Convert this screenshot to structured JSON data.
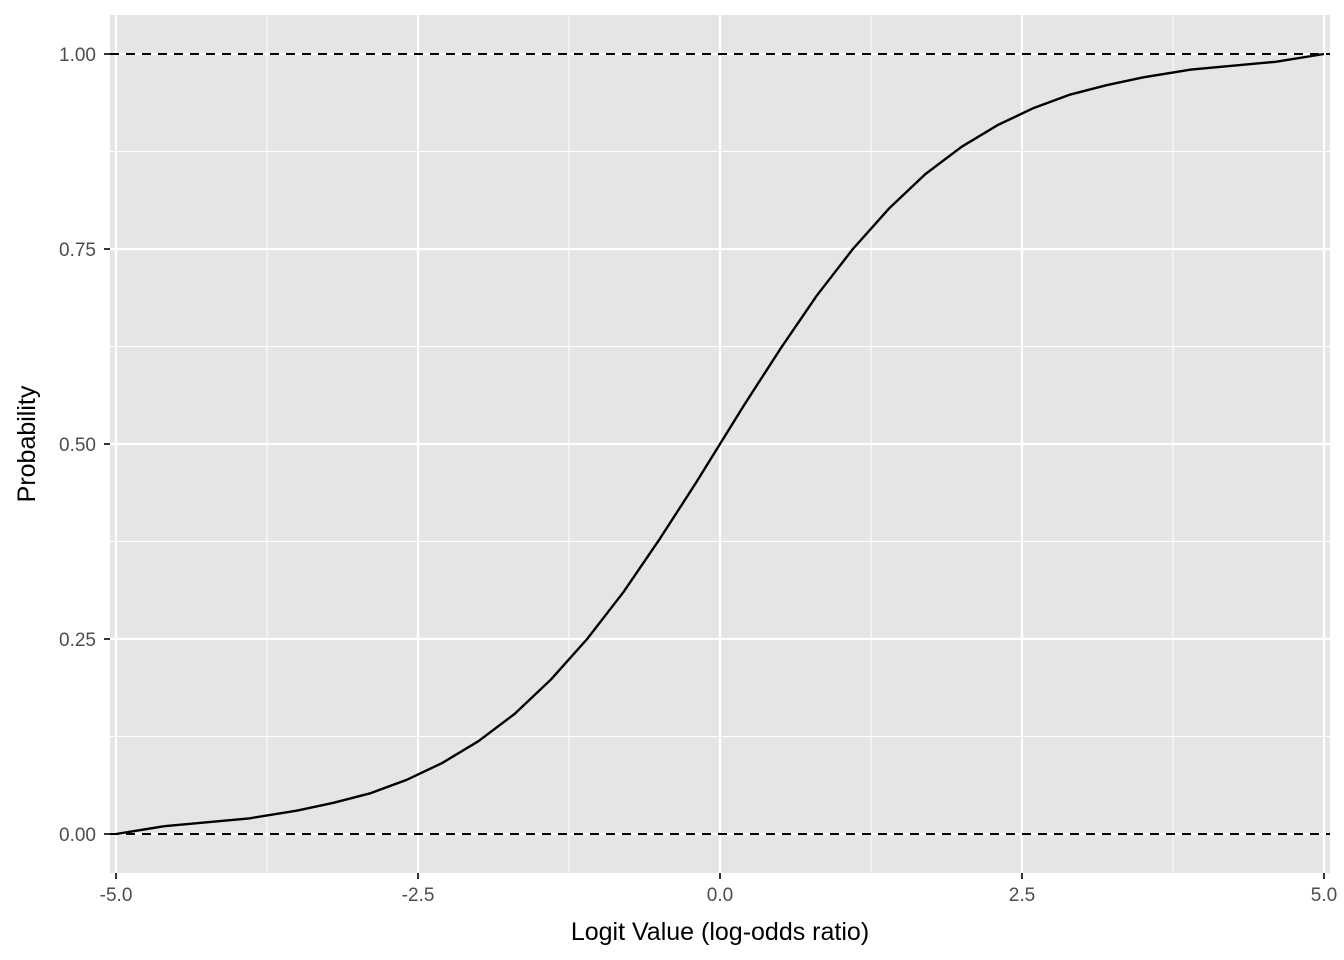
{
  "chart_data": {
    "type": "line",
    "title": "",
    "xlabel": "Logit Value (log-odds ratio)",
    "ylabel": "Probability",
    "xlim": [
      -5.05,
      5.05
    ],
    "ylim": [
      -0.05,
      1.05
    ],
    "x_ticks": [
      -5.0,
      -2.5,
      0.0,
      2.5,
      5.0
    ],
    "x_tick_labels": [
      "-5.0",
      "-2.5",
      "0.0",
      "2.5",
      "5.0"
    ],
    "y_ticks": [
      0.0,
      0.25,
      0.5,
      0.75,
      1.0
    ],
    "y_tick_labels": [
      "0.00",
      "0.25",
      "0.50",
      "0.75",
      "1.00"
    ],
    "x_minor_ticks": [
      -3.75,
      -1.25,
      1.25,
      3.75
    ],
    "y_minor_ticks": [
      0.125,
      0.375,
      0.625,
      0.875
    ],
    "grid": true,
    "panel_background": "#e5e5e5",
    "grid_color": "#ffffff",
    "line_color": "#000000",
    "reference_lines": [
      {
        "y": 0.0,
        "style": "dashed"
      },
      {
        "y": 1.0,
        "style": "dashed"
      }
    ],
    "series": [
      {
        "x": [
          -5.0,
          -4.6,
          -3.9,
          -3.5,
          -3.2,
          -2.9,
          -2.6,
          -2.3,
          -2.0,
          -1.7,
          -1.4,
          -1.1,
          -0.8,
          -0.5,
          -0.2,
          0.0,
          0.2,
          0.5,
          0.8,
          1.1,
          1.4,
          1.7,
          2.0,
          2.3,
          2.6,
          2.9,
          3.2,
          3.5,
          3.9,
          4.6,
          5.0
        ],
        "y": [
          0.0,
          0.01,
          0.02,
          0.03,
          0.04,
          0.052,
          0.069,
          0.091,
          0.119,
          0.154,
          0.198,
          0.25,
          0.31,
          0.378,
          0.45,
          0.5,
          0.55,
          0.622,
          0.69,
          0.75,
          0.802,
          0.846,
          0.881,
          0.909,
          0.931,
          0.948,
          0.96,
          0.97,
          0.98,
          0.99,
          1.0
        ]
      }
    ]
  }
}
